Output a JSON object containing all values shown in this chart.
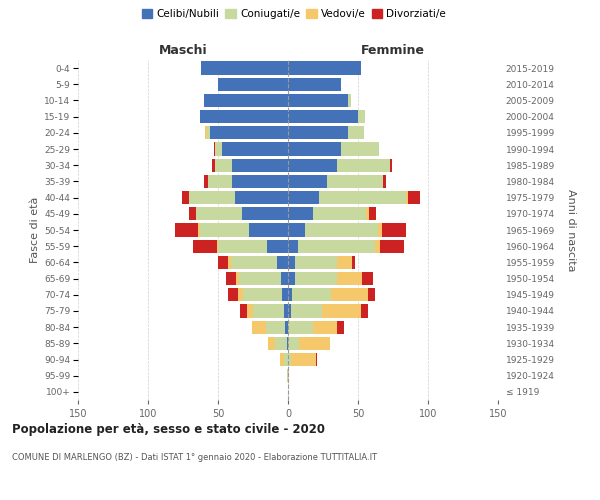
{
  "age_groups": [
    "100+",
    "95-99",
    "90-94",
    "85-89",
    "80-84",
    "75-79",
    "70-74",
    "65-69",
    "60-64",
    "55-59",
    "50-54",
    "45-49",
    "40-44",
    "35-39",
    "30-34",
    "25-29",
    "20-24",
    "15-19",
    "10-14",
    "5-9",
    "0-4"
  ],
  "birth_years": [
    "≤ 1919",
    "1920-1924",
    "1925-1929",
    "1930-1934",
    "1935-1939",
    "1940-1944",
    "1945-1949",
    "1950-1954",
    "1955-1959",
    "1960-1964",
    "1965-1969",
    "1970-1974",
    "1975-1979",
    "1980-1984",
    "1985-1989",
    "1990-1994",
    "1995-1999",
    "2000-2004",
    "2005-2009",
    "2010-2014",
    "2015-2019"
  ],
  "males": {
    "celibi": [
      0,
      0,
      0,
      1,
      2,
      3,
      4,
      5,
      8,
      15,
      28,
      33,
      38,
      40,
      40,
      47,
      56,
      63,
      60,
      50,
      62
    ],
    "coniugati": [
      0,
      1,
      3,
      8,
      14,
      22,
      28,
      30,
      33,
      35,
      35,
      33,
      33,
      17,
      12,
      5,
      2,
      0,
      0,
      0,
      0
    ],
    "vedovi": [
      0,
      0,
      3,
      5,
      10,
      4,
      4,
      2,
      2,
      1,
      1,
      0,
      0,
      0,
      0,
      0,
      1,
      0,
      0,
      0,
      0
    ],
    "divorziati": [
      0,
      0,
      0,
      0,
      0,
      5,
      7,
      7,
      7,
      17,
      17,
      5,
      5,
      3,
      2,
      1,
      0,
      0,
      0,
      0,
      0
    ]
  },
  "females": {
    "nubili": [
      0,
      0,
      0,
      0,
      0,
      2,
      3,
      5,
      5,
      7,
      12,
      18,
      22,
      28,
      35,
      38,
      43,
      50,
      43,
      38,
      52
    ],
    "coniugate": [
      0,
      0,
      2,
      8,
      18,
      22,
      28,
      30,
      30,
      55,
      52,
      38,
      62,
      40,
      38,
      27,
      11,
      5,
      2,
      0,
      0
    ],
    "vedove": [
      0,
      1,
      18,
      22,
      17,
      28,
      26,
      18,
      11,
      4,
      3,
      2,
      2,
      0,
      0,
      0,
      0,
      0,
      0,
      0,
      0
    ],
    "divorziate": [
      0,
      0,
      1,
      0,
      5,
      5,
      5,
      8,
      2,
      17,
      17,
      5,
      8,
      2,
      1,
      0,
      0,
      0,
      0,
      0,
      0
    ]
  },
  "colors": {
    "celibi": "#4472b8",
    "coniugati": "#c8d9a0",
    "vedovi": "#f5c96b",
    "divorziati": "#cc2222"
  },
  "legend_labels": [
    "Celibi/Nubili",
    "Coniugati/e",
    "Vedovi/e",
    "Divorziati/e"
  ],
  "title": "Popolazione per età, sesso e stato civile - 2020",
  "subtitle": "COMUNE DI MARLENGO (BZ) - Dati ISTAT 1° gennaio 2020 - Elaborazione TUTTITALIA.IT",
  "maschi_label": "Maschi",
  "femmine_label": "Femmine",
  "ylabel_left": "Fasce di età",
  "ylabel_right": "Anni di nascita",
  "xlim": 150,
  "background_color": "#ffffff",
  "grid_color": "#cccccc"
}
